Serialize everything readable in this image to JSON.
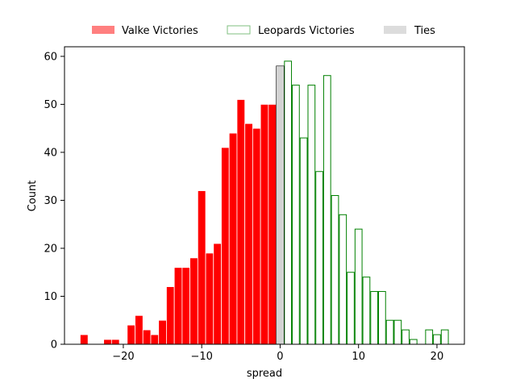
{
  "chart_data": {
    "type": "bar",
    "xlabel": "spread",
    "ylabel": "Count",
    "xlim": [
      -27.5,
      23.5
    ],
    "ylim": [
      0,
      62
    ],
    "xticks": [
      -20,
      -10,
      0,
      10,
      20
    ],
    "xtick_labels": [
      "−20",
      "−10",
      "0",
      "10",
      "20"
    ],
    "yticks": [
      0,
      10,
      20,
      30,
      40,
      50,
      60
    ],
    "ytick_labels": [
      "0",
      "10",
      "20",
      "30",
      "40",
      "50",
      "60"
    ],
    "legend_position": "top-center (above plot)",
    "grid": false,
    "series": [
      {
        "name": "Valke Victories",
        "style": "filled",
        "color": "#ff0000",
        "legend_color": "#ff7f7f",
        "x": [
          -25,
          -24,
          -23,
          -22,
          -21,
          -20,
          -19,
          -18,
          -17,
          -16,
          -15,
          -14,
          -13,
          -12,
          -11,
          -10,
          -9,
          -8,
          -7,
          -6,
          -5,
          -4,
          -3,
          -2,
          -1
        ],
        "values": [
          2,
          0,
          0,
          1,
          1,
          0,
          4,
          6,
          3,
          2,
          5,
          12,
          16,
          16,
          18,
          32,
          19,
          21,
          41,
          44,
          51,
          46,
          45,
          50,
          50
        ]
      },
      {
        "name": "Leopards Victories",
        "style": "outline",
        "color": "#008000",
        "legend_color": "#7fbf7f",
        "x": [
          1,
          2,
          3,
          4,
          5,
          6,
          7,
          8,
          9,
          10,
          11,
          12,
          13,
          14,
          15,
          16,
          17,
          18,
          19,
          20,
          21
        ],
        "values": [
          59,
          54,
          43,
          54,
          36,
          56,
          31,
          27,
          15,
          24,
          14,
          11,
          11,
          5,
          5,
          3,
          1,
          0,
          3,
          2,
          3
        ]
      },
      {
        "name": "Ties",
        "style": "filled",
        "color": "#d3d3d3",
        "legend_color": "#dcdcdc",
        "x": [
          0
        ],
        "values": [
          58
        ]
      }
    ]
  }
}
